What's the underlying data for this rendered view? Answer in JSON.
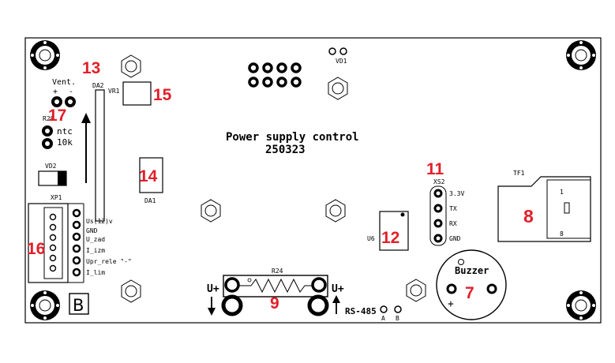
{
  "board": {
    "title": "Power supply control",
    "code": "250323",
    "frame_letter": "B"
  },
  "components": {
    "da2": "DA2",
    "vr1": "VR1",
    "vd1": "VD1",
    "vent": "Vent.",
    "vent_plus": "+",
    "vent_minus": "-",
    "r28": "R28",
    "ntc": "ntc",
    "ntc_value": "10k",
    "vd2": "VD2",
    "xp1": "XP1",
    "da1": "DA1",
    "u6": "U6",
    "xs2": "XS2",
    "tf1": "TF1",
    "tf1_pin1": "1",
    "tf1_pin8": "8",
    "r24": "R24",
    "buzzer": "Buzzer",
    "buzzer_plus": "+",
    "rs485": "RS-485",
    "rs485_a": "A",
    "rs485_b": "B",
    "u_plus_left": "U+",
    "u_plus_right": "U+"
  },
  "xp1_pins": [
    "Us(12)v",
    "GND",
    "U_zad",
    "I_izm",
    "Upr_rele \"-\"",
    "I_lim"
  ],
  "xs2_pins": [
    "3.3V",
    "TX",
    "RX",
    "GND"
  ],
  "callouts": {
    "n7": "7",
    "n8": "8",
    "n9": "9",
    "n11": "11",
    "n12": "12",
    "n13": "13",
    "n14": "14",
    "n15": "15",
    "n16": "16",
    "n17": "17"
  },
  "colors": {
    "callout": "#e0202a",
    "silkscreen": "#000000",
    "board": "#ffffff"
  }
}
